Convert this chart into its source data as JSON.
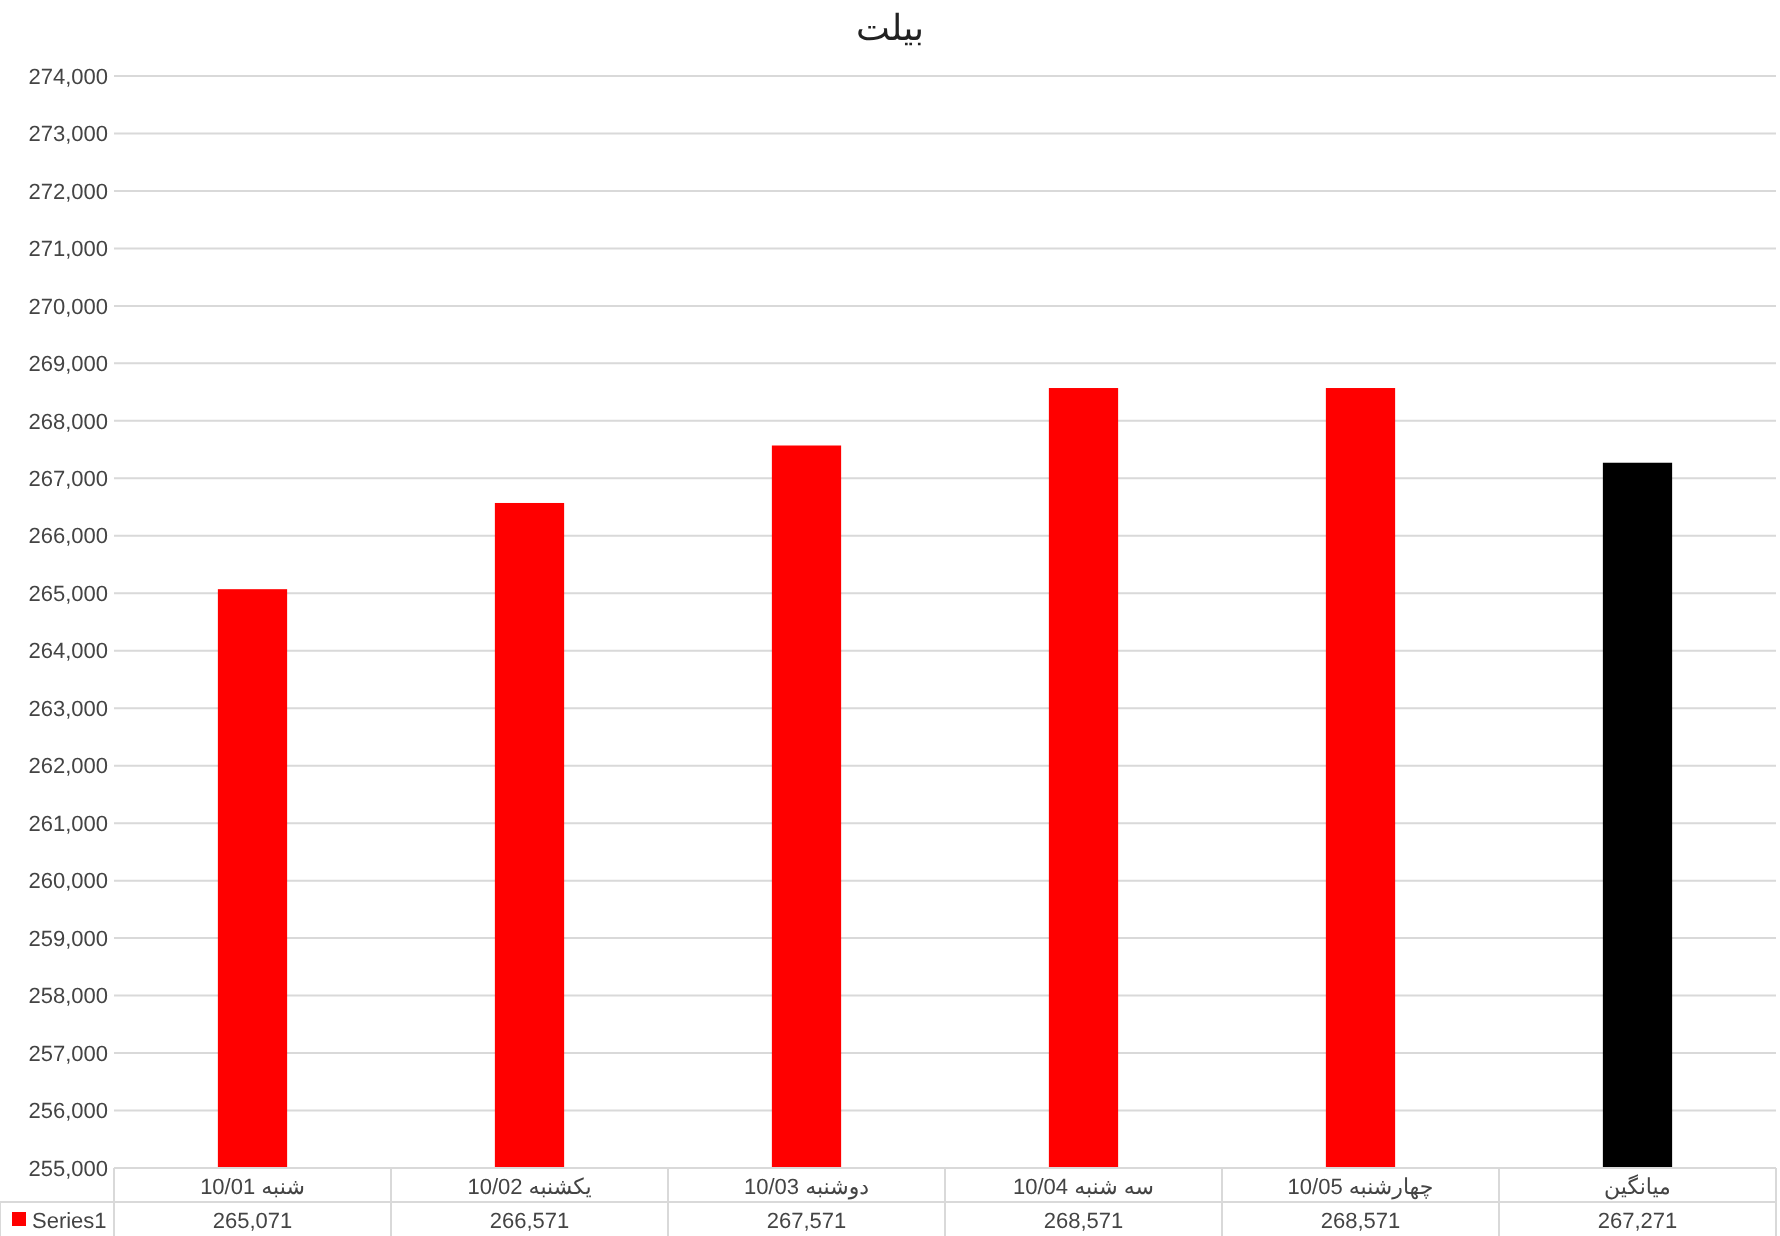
{
  "chart_data": {
    "type": "bar",
    "title": "بیلت",
    "categories": [
      "10/01 شنبه",
      "10/02 یکشنبه",
      "10/03 دوشنبه",
      "10/04 سه شنبه",
      "10/05 چهارشنبه",
      "میانگین"
    ],
    "series": [
      {
        "name": "Series1",
        "color": "#ff0000",
        "colors": [
          "#ff0000",
          "#ff0000",
          "#ff0000",
          "#ff0000",
          "#ff0000",
          "#000000"
        ],
        "values": [
          265071,
          266571,
          267571,
          268571,
          268571,
          267271
        ],
        "value_labels": [
          "265,071",
          "266,571",
          "267,571",
          "268,571",
          "268,571",
          "267,271"
        ]
      }
    ],
    "ylim": [
      255000,
      274000
    ],
    "yticks": [
      {
        "value": 255000,
        "label": "255,000"
      },
      {
        "value": 256000,
        "label": "256,000"
      },
      {
        "value": 257000,
        "label": "257,000"
      },
      {
        "value": 258000,
        "label": "258,000"
      },
      {
        "value": 259000,
        "label": "259,000"
      },
      {
        "value": 260000,
        "label": "260,000"
      },
      {
        "value": 261000,
        "label": "261,000"
      },
      {
        "value": 262000,
        "label": "262,000"
      },
      {
        "value": 263000,
        "label": "263,000"
      },
      {
        "value": 264000,
        "label": "264,000"
      },
      {
        "value": 265000,
        "label": "265,000"
      },
      {
        "value": 266000,
        "label": "266,000"
      },
      {
        "value": 267000,
        "label": "267,000"
      },
      {
        "value": 268000,
        "label": "268,000"
      },
      {
        "value": 269000,
        "label": "269,000"
      },
      {
        "value": 270000,
        "label": "270,000"
      },
      {
        "value": 271000,
        "label": "271,000"
      },
      {
        "value": 272000,
        "label": "272,000"
      },
      {
        "value": 273000,
        "label": "273,000"
      },
      {
        "value": 274000,
        "label": "274,000"
      }
    ],
    "grid": "y",
    "legend": "bottom"
  }
}
